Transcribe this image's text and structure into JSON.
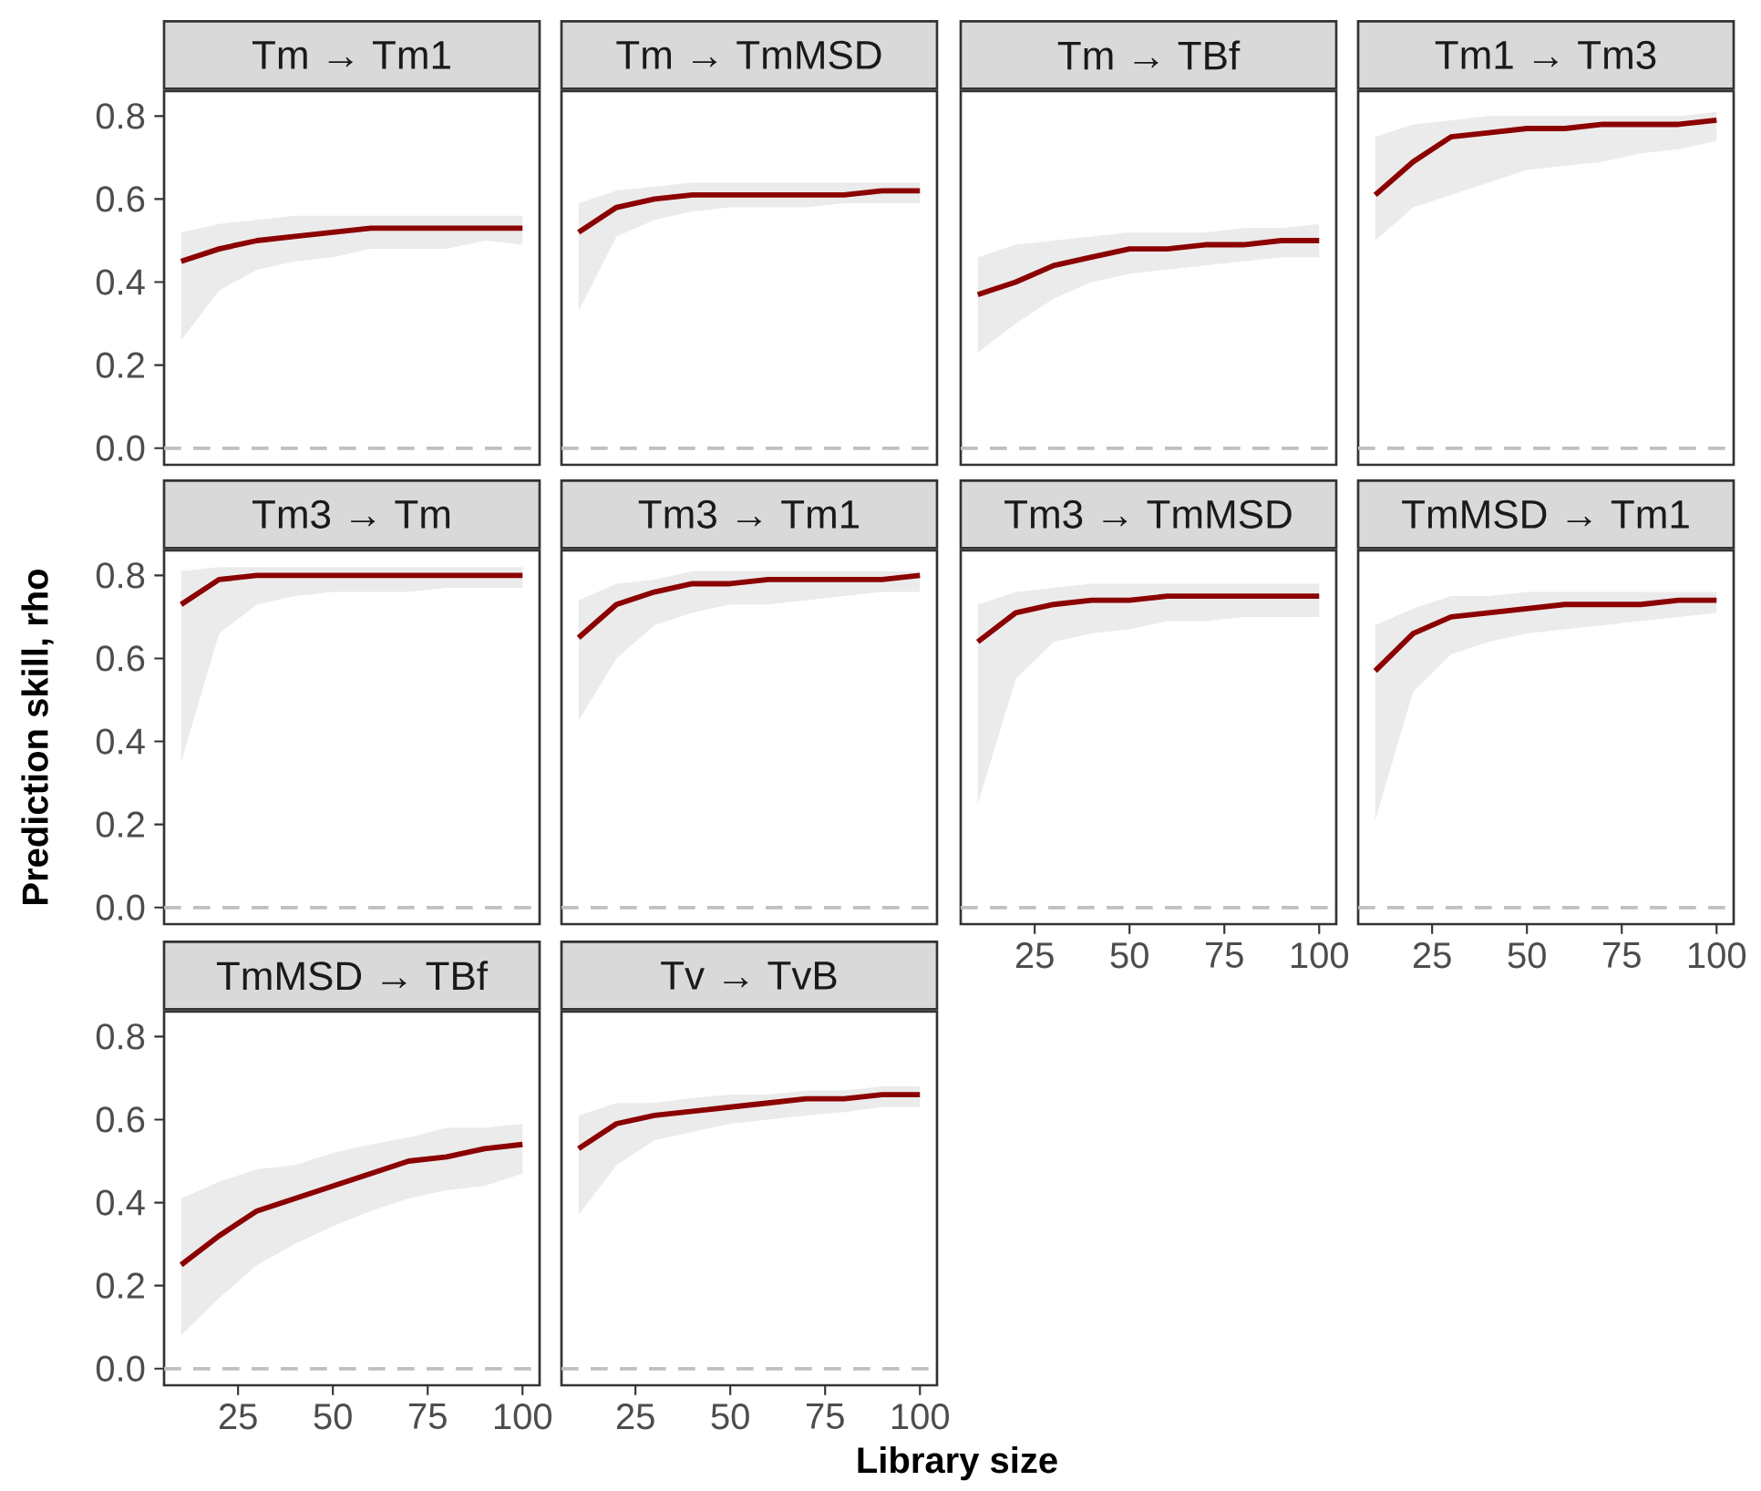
{
  "chart_data": [
    {
      "type": "line",
      "title": "Tm → Tm1",
      "x": [
        10,
        20,
        30,
        40,
        50,
        60,
        70,
        80,
        90,
        100
      ],
      "xlim": [
        5.5,
        104.5
      ],
      "ylim": [
        -0.04,
        0.86
      ],
      "yticks": [
        {
          "value": 0,
          "label": "0.0"
        },
        {
          "value": 0.2,
          "label": "0.2"
        },
        {
          "value": 0.4,
          "label": "0.4"
        },
        {
          "value": 0.6,
          "label": "0.6"
        },
        {
          "value": 0.8,
          "label": "0.8"
        }
      ],
      "tick_labels": "y",
      "series": [
        {
          "color": "#8b0000",
          "values": [
            0.45,
            0.48,
            0.5,
            0.51,
            0.52,
            0.53,
            0.53,
            0.53,
            0.53,
            0.53
          ],
          "lower": [
            0.26,
            0.38,
            0.43,
            0.45,
            0.46,
            0.48,
            0.48,
            0.48,
            0.5,
            0.49
          ],
          "upper": [
            0.52,
            0.54,
            0.55,
            0.56,
            0.56,
            0.56,
            0.56,
            0.56,
            0.56,
            0.56
          ]
        }
      ],
      "ref_lines": [
        {
          "axis": "y",
          "value": 0,
          "color": "#c0c0c0",
          "line_style": "dashed"
        }
      ]
    },
    {
      "type": "line",
      "title": "Tm → TmMSD",
      "x": [
        10,
        20,
        30,
        40,
        50,
        60,
        70,
        80,
        90,
        100
      ],
      "xlim": [
        5.5,
        104.5
      ],
      "ylim": [
        -0.04,
        0.86
      ],
      "tick_labels": false,
      "series": [
        {
          "color": "#8b0000",
          "values": [
            0.52,
            0.58,
            0.6,
            0.61,
            0.61,
            0.61,
            0.61,
            0.61,
            0.62,
            0.62
          ],
          "lower": [
            0.33,
            0.51,
            0.55,
            0.57,
            0.58,
            0.58,
            0.58,
            0.59,
            0.59,
            0.59
          ],
          "upper": [
            0.59,
            0.62,
            0.63,
            0.64,
            0.64,
            0.64,
            0.64,
            0.64,
            0.64,
            0.64
          ]
        }
      ],
      "ref_lines": [
        {
          "axis": "y",
          "value": 0,
          "color": "#c0c0c0",
          "line_style": "dashed"
        }
      ]
    },
    {
      "type": "line",
      "title": "Tm → TBf",
      "x": [
        10,
        20,
        30,
        40,
        50,
        60,
        70,
        80,
        90,
        100
      ],
      "xlim": [
        5.5,
        104.5
      ],
      "ylim": [
        -0.04,
        0.86
      ],
      "tick_labels": false,
      "series": [
        {
          "color": "#8b0000",
          "values": [
            0.37,
            0.4,
            0.44,
            0.46,
            0.48,
            0.48,
            0.49,
            0.49,
            0.5,
            0.5
          ],
          "lower": [
            0.23,
            0.3,
            0.36,
            0.4,
            0.42,
            0.43,
            0.44,
            0.45,
            0.46,
            0.46
          ],
          "upper": [
            0.46,
            0.49,
            0.5,
            0.51,
            0.52,
            0.52,
            0.52,
            0.53,
            0.53,
            0.54
          ]
        }
      ],
      "ref_lines": [
        {
          "axis": "y",
          "value": 0,
          "color": "#c0c0c0",
          "line_style": "dashed"
        }
      ]
    },
    {
      "type": "line",
      "title": "Tm1 → Tm3",
      "x": [
        10,
        20,
        30,
        40,
        50,
        60,
        70,
        80,
        90,
        100
      ],
      "xlim": [
        5.5,
        104.5
      ],
      "ylim": [
        -0.04,
        0.86
      ],
      "tick_labels": false,
      "series": [
        {
          "color": "#8b0000",
          "values": [
            0.61,
            0.69,
            0.75,
            0.76,
            0.77,
            0.77,
            0.78,
            0.78,
            0.78,
            0.79
          ],
          "lower": [
            0.5,
            0.58,
            0.61,
            0.64,
            0.67,
            0.68,
            0.69,
            0.71,
            0.72,
            0.74
          ],
          "upper": [
            0.75,
            0.78,
            0.79,
            0.8,
            0.8,
            0.8,
            0.8,
            0.8,
            0.8,
            0.81
          ]
        }
      ],
      "ref_lines": [
        {
          "axis": "y",
          "value": 0,
          "color": "#c0c0c0",
          "line_style": "dashed"
        }
      ]
    },
    {
      "type": "line",
      "title": "Tm3 → Tm",
      "ylabel": "Prediction skill, rho",
      "x": [
        10,
        20,
        30,
        40,
        50,
        60,
        70,
        80,
        90,
        100
      ],
      "xlim": [
        5.5,
        104.5
      ],
      "ylim": [
        -0.04,
        0.86
      ],
      "yticks": [
        {
          "value": 0,
          "label": "0.0"
        },
        {
          "value": 0.2,
          "label": "0.2"
        },
        {
          "value": 0.4,
          "label": "0.4"
        },
        {
          "value": 0.6,
          "label": "0.6"
        },
        {
          "value": 0.8,
          "label": "0.8"
        }
      ],
      "tick_labels": "y",
      "series": [
        {
          "color": "#8b0000",
          "values": [
            0.73,
            0.79,
            0.8,
            0.8,
            0.8,
            0.8,
            0.8,
            0.8,
            0.8,
            0.8
          ],
          "lower": [
            0.35,
            0.66,
            0.73,
            0.75,
            0.76,
            0.76,
            0.76,
            0.77,
            0.77,
            0.77
          ],
          "upper": [
            0.81,
            0.82,
            0.82,
            0.82,
            0.82,
            0.82,
            0.82,
            0.82,
            0.82,
            0.82
          ]
        }
      ],
      "ref_lines": [
        {
          "axis": "y",
          "value": 0,
          "color": "#c0c0c0",
          "line_style": "dashed"
        }
      ]
    },
    {
      "type": "line",
      "title": "Tm3 → Tm1",
      "x": [
        10,
        20,
        30,
        40,
        50,
        60,
        70,
        80,
        90,
        100
      ],
      "xlim": [
        5.5,
        104.5
      ],
      "ylim": [
        -0.04,
        0.86
      ],
      "tick_labels": false,
      "series": [
        {
          "color": "#8b0000",
          "values": [
            0.65,
            0.73,
            0.76,
            0.78,
            0.78,
            0.79,
            0.79,
            0.79,
            0.79,
            0.8
          ],
          "lower": [
            0.45,
            0.6,
            0.68,
            0.71,
            0.73,
            0.73,
            0.74,
            0.75,
            0.76,
            0.76
          ],
          "upper": [
            0.74,
            0.78,
            0.79,
            0.81,
            0.81,
            0.81,
            0.81,
            0.81,
            0.81,
            0.81
          ]
        }
      ],
      "ref_lines": [
        {
          "axis": "y",
          "value": 0,
          "color": "#c0c0c0",
          "line_style": "dashed"
        }
      ]
    },
    {
      "type": "line",
      "title": "Tm3 → TmMSD",
      "x": [
        10,
        20,
        30,
        40,
        50,
        60,
        70,
        80,
        90,
        100
      ],
      "xlim": [
        5.5,
        104.5
      ],
      "ylim": [
        -0.04,
        0.86
      ],
      "xticks": [
        25,
        50,
        75,
        100
      ],
      "tick_labels": "x",
      "series": [
        {
          "color": "#8b0000",
          "values": [
            0.64,
            0.71,
            0.73,
            0.74,
            0.74,
            0.75,
            0.75,
            0.75,
            0.75,
            0.75
          ],
          "lower": [
            0.25,
            0.55,
            0.64,
            0.66,
            0.67,
            0.69,
            0.69,
            0.7,
            0.7,
            0.7
          ],
          "upper": [
            0.73,
            0.76,
            0.77,
            0.78,
            0.78,
            0.78,
            0.78,
            0.78,
            0.78,
            0.78
          ]
        }
      ],
      "ref_lines": [
        {
          "axis": "y",
          "value": 0,
          "color": "#c0c0c0",
          "line_style": "dashed"
        }
      ]
    },
    {
      "type": "line",
      "title": "TmMSD → Tm1",
      "x": [
        10,
        20,
        30,
        40,
        50,
        60,
        70,
        80,
        90,
        100
      ],
      "xlim": [
        5.5,
        104.5
      ],
      "ylim": [
        -0.04,
        0.86
      ],
      "xticks": [
        25,
        50,
        75,
        100
      ],
      "tick_labels": "x",
      "series": [
        {
          "color": "#8b0000",
          "values": [
            0.57,
            0.66,
            0.7,
            0.71,
            0.72,
            0.73,
            0.73,
            0.73,
            0.74,
            0.74
          ],
          "lower": [
            0.21,
            0.52,
            0.61,
            0.64,
            0.66,
            0.67,
            0.68,
            0.69,
            0.7,
            0.71
          ],
          "upper": [
            0.68,
            0.72,
            0.75,
            0.75,
            0.76,
            0.76,
            0.76,
            0.76,
            0.76,
            0.76
          ]
        }
      ],
      "ref_lines": [
        {
          "axis": "y",
          "value": 0,
          "color": "#c0c0c0",
          "line_style": "dashed"
        }
      ]
    },
    {
      "type": "line",
      "title": "TmMSD → TBf",
      "x": [
        10,
        20,
        30,
        40,
        50,
        60,
        70,
        80,
        90,
        100
      ],
      "xlim": [
        5.5,
        104.5
      ],
      "ylim": [
        -0.04,
        0.86
      ],
      "xticks": [
        25,
        50,
        75,
        100
      ],
      "yticks": [
        {
          "value": 0,
          "label": "0.0"
        },
        {
          "value": 0.2,
          "label": "0.2"
        },
        {
          "value": 0.4,
          "label": "0.4"
        },
        {
          "value": 0.6,
          "label": "0.6"
        },
        {
          "value": 0.8,
          "label": "0.8"
        }
      ],
      "series": [
        {
          "color": "#8b0000",
          "values": [
            0.25,
            0.32,
            0.38,
            0.41,
            0.44,
            0.47,
            0.5,
            0.51,
            0.53,
            0.54
          ],
          "lower": [
            0.08,
            0.17,
            0.25,
            0.3,
            0.343,
            0.38,
            0.41,
            0.43,
            0.44,
            0.47
          ],
          "upper": [
            0.41,
            0.45,
            0.48,
            0.49,
            0.52,
            0.54,
            0.557,
            0.58,
            0.58,
            0.59
          ]
        }
      ],
      "ref_lines": [
        {
          "axis": "y",
          "value": 0,
          "color": "#c0c0c0",
          "line_style": "dashed"
        }
      ]
    },
    {
      "type": "line",
      "title": "Tv → TvB",
      "xlabel": "Library size",
      "x": [
        10,
        20,
        30,
        40,
        50,
        60,
        70,
        80,
        90,
        100
      ],
      "xlim": [
        5.5,
        104.5
      ],
      "ylim": [
        -0.04,
        0.86
      ],
      "xticks": [
        25,
        50,
        75,
        100
      ],
      "tick_labels": "x",
      "series": [
        {
          "color": "#8b0000",
          "values": [
            0.53,
            0.59,
            0.61,
            0.62,
            0.63,
            0.64,
            0.65,
            0.65,
            0.66,
            0.66
          ],
          "lower": [
            0.37,
            0.49,
            0.55,
            0.57,
            0.59,
            0.6,
            0.61,
            0.618,
            0.63,
            0.63
          ],
          "upper": [
            0.61,
            0.64,
            0.64,
            0.652,
            0.66,
            0.66,
            0.67,
            0.67,
            0.68,
            0.68
          ]
        }
      ],
      "ref_lines": [
        {
          "axis": "y",
          "value": 0,
          "color": "#c0c0c0",
          "line_style": "dashed"
        }
      ]
    }
  ]
}
